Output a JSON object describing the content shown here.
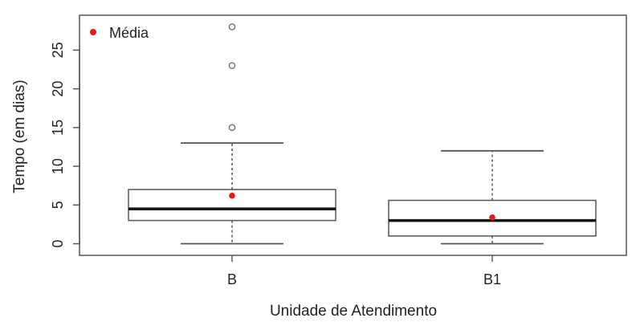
{
  "chart_data": {
    "type": "boxplot",
    "xlabel": "Unidade de Atendimento",
    "ylabel": "Tempo (em dias)",
    "ylim": [
      -1.5,
      29.5
    ],
    "yticks": [
      0,
      5,
      10,
      15,
      20,
      25
    ],
    "categories": [
      "B",
      "B1"
    ],
    "boxes": [
      {
        "category": "B",
        "min": 0,
        "q1": 3,
        "median": 4.5,
        "q3": 7,
        "max": 13,
        "mean": 6.2,
        "outliers": [
          15,
          23,
          28
        ]
      },
      {
        "category": "B1",
        "min": 0,
        "q1": 1,
        "median": 3,
        "q3": 5.6,
        "max": 12,
        "mean": 3.4,
        "outliers": []
      }
    ],
    "legend": {
      "position": "top-left",
      "entries": [
        {
          "label": "Média",
          "color": "#e41a1c"
        }
      ]
    },
    "colors": {
      "mean": "#e41a1c",
      "box": "#555555",
      "median": "#111111",
      "outlier": "#777777"
    }
  }
}
